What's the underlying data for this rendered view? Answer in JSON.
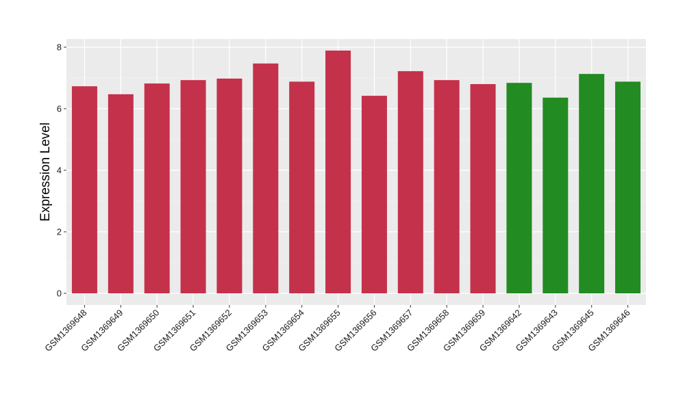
{
  "chart_data": {
    "type": "bar",
    "title": "",
    "xlabel": "",
    "ylabel": "Expression Level",
    "ylim": [
      0,
      8.3
    ],
    "yticks": [
      0,
      2,
      4,
      6,
      8
    ],
    "grid": true,
    "colors": {
      "panel_background": "#ebebeb",
      "grid_major": "#ffffff",
      "group_a": "#c4314b",
      "group_b": "#228b22"
    },
    "categories": [
      "GSM1369648",
      "GSM1369649",
      "GSM1369650",
      "GSM1369651",
      "GSM1369652",
      "GSM1369653",
      "GSM1369654",
      "GSM1369655",
      "GSM1369656",
      "GSM1369657",
      "GSM1369658",
      "GSM1369659",
      "GSM1369642",
      "GSM1369643",
      "GSM1369645",
      "GSM1369646"
    ],
    "values": [
      6.73,
      6.47,
      6.82,
      6.93,
      6.98,
      7.47,
      6.88,
      7.89,
      6.42,
      7.22,
      6.93,
      6.8,
      6.84,
      6.36,
      7.13,
      6.88
    ],
    "bar_groups": [
      "a",
      "a",
      "a",
      "a",
      "a",
      "a",
      "a",
      "a",
      "a",
      "a",
      "a",
      "a",
      "b",
      "b",
      "b",
      "b"
    ]
  }
}
